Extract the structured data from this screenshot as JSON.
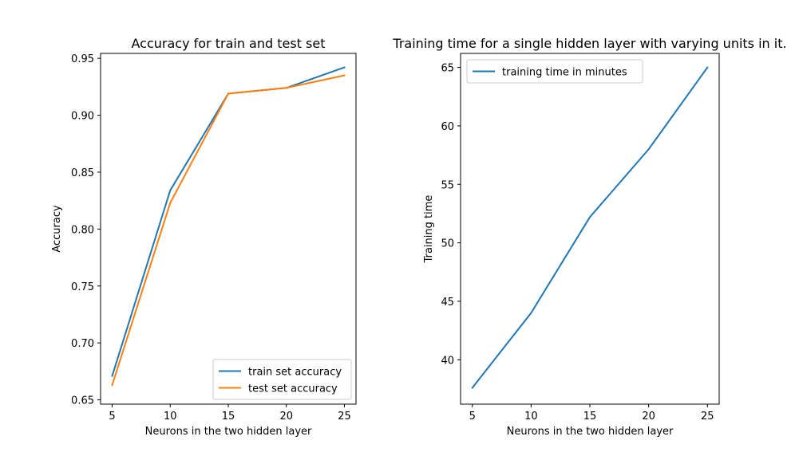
{
  "chart_data": [
    {
      "type": "line",
      "title": "Accuracy for train and test set",
      "xlabel": "Neurons in the two hidden layer",
      "ylabel": "Accuracy",
      "x": [
        5,
        10,
        15,
        20,
        25
      ],
      "xlim": [
        4.0,
        26.0
      ],
      "ylim": [
        0.6462,
        0.9543
      ],
      "xticks": [
        5,
        10,
        15,
        20,
        25
      ],
      "xtick_labels": [
        "5",
        "10",
        "15",
        "20",
        "25"
      ],
      "yticks": [
        0.65,
        0.7,
        0.75,
        0.8,
        0.85,
        0.9,
        0.95
      ],
      "ytick_labels": [
        "0.65",
        "0.70",
        "0.75",
        "0.80",
        "0.85",
        "0.90",
        "0.95"
      ],
      "grid": false,
      "legend": "lower-right",
      "series": [
        {
          "name": "train set accuracy",
          "color": "#1f77b4",
          "values": [
            0.671,
            0.834,
            0.919,
            0.924,
            0.942
          ]
        },
        {
          "name": "test set accuracy",
          "color": "#ff7f0e",
          "values": [
            0.663,
            0.823,
            0.919,
            0.924,
            0.935
          ]
        }
      ]
    },
    {
      "type": "line",
      "title": "Training time for a single hidden layer with varying units in it.",
      "xlabel": "Neurons in the two hidden layer",
      "ylabel": "Training time",
      "x": [
        5,
        10,
        15,
        20,
        25
      ],
      "xlim": [
        4.0,
        26.0
      ],
      "ylim": [
        36.2,
        66.2
      ],
      "xticks": [
        5,
        10,
        15,
        20,
        25
      ],
      "xtick_labels": [
        "5",
        "10",
        "15",
        "20",
        "25"
      ],
      "yticks": [
        40,
        45,
        50,
        55,
        60,
        65
      ],
      "ytick_labels": [
        "40",
        "45",
        "50",
        "55",
        "60",
        "65"
      ],
      "grid": false,
      "legend": "top-left",
      "series": [
        {
          "name": "training time in minutes",
          "color": "#1f77b4",
          "values": [
            37.6,
            44.0,
            52.2,
            58.0,
            65.0
          ]
        }
      ]
    }
  ]
}
